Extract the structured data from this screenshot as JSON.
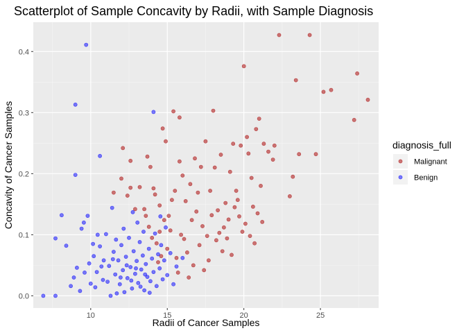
{
  "chart_data": {
    "type": "scatter",
    "title": "Scatterplot of Sample Concavity by Radii, with Sample Diagnosis",
    "xlabel": "Radii of Cancer Samples",
    "ylabel": "Concavity of Cancer Samples",
    "xlim": [
      6.25,
      28.8
    ],
    "ylim": [
      -0.02,
      0.448
    ],
    "x_ticks": [
      10,
      15,
      20,
      25
    ],
    "y_ticks": [
      0.0,
      0.1,
      0.2,
      0.3,
      0.4
    ],
    "x_tick_labels": [
      "10",
      "15",
      "20",
      "25"
    ],
    "y_tick_labels": [
      "0.0",
      "0.1",
      "0.2",
      "0.3",
      "0.4"
    ],
    "grid": true,
    "legend_title": "diagnosis_full",
    "legend_position": "right",
    "series": [
      {
        "name": "Malignant",
        "color": "#b2222299",
        "points": [
          [
            11.5,
            0.169
          ],
          [
            12.0,
            0.192
          ],
          [
            12.1,
            0.242
          ],
          [
            12.4,
            0.164
          ],
          [
            12.6,
            0.221
          ],
          [
            12.6,
            0.177
          ],
          [
            12.9,
            0.142
          ],
          [
            13.2,
            0.178
          ],
          [
            13.5,
            0.142
          ],
          [
            13.7,
            0.228
          ],
          [
            13.9,
            0.211
          ],
          [
            14.1,
            0.176
          ],
          [
            14.2,
            0.166
          ],
          [
            14.5,
            0.148
          ],
          [
            14.5,
            0.105
          ],
          [
            14.7,
            0.274
          ],
          [
            14.9,
            0.253
          ],
          [
            15.1,
            0.131
          ],
          [
            15.3,
            0.157
          ],
          [
            15.5,
            0.172
          ],
          [
            15.8,
            0.292
          ],
          [
            15.8,
            0.22
          ],
          [
            16.0,
            0.197
          ],
          [
            16.2,
            0.155
          ],
          [
            16.5,
            0.183
          ],
          [
            16.8,
            0.225
          ],
          [
            17.0,
            0.169
          ],
          [
            17.2,
            0.211
          ],
          [
            17.5,
            0.253
          ],
          [
            17.8,
            0.172
          ],
          [
            18.0,
            0.303
          ],
          [
            18.1,
            0.21
          ],
          [
            18.3,
            0.14
          ],
          [
            18.5,
            0.231
          ],
          [
            18.8,
            0.152
          ],
          [
            19.1,
            0.203
          ],
          [
            19.3,
            0.249
          ],
          [
            19.5,
            0.172
          ],
          [
            19.6,
            0.157
          ],
          [
            19.8,
            0.246
          ],
          [
            20.0,
            0.376
          ],
          [
            20.2,
            0.26
          ],
          [
            20.3,
            0.233
          ],
          [
            20.5,
            0.193
          ],
          [
            20.6,
            0.146
          ],
          [
            20.8,
            0.273
          ],
          [
            21.0,
            0.29
          ],
          [
            21.1,
            0.18
          ],
          [
            21.3,
            0.249
          ],
          [
            21.6,
            0.236
          ],
          [
            21.9,
            0.223
          ],
          [
            22.0,
            0.246
          ],
          [
            22.3,
            0.427
          ],
          [
            23.0,
            0.163
          ],
          [
            23.2,
            0.195
          ],
          [
            23.4,
            0.353
          ],
          [
            23.6,
            0.232
          ],
          [
            24.3,
            0.427
          ],
          [
            24.7,
            0.232
          ],
          [
            25.2,
            0.334
          ],
          [
            25.7,
            0.337
          ],
          [
            27.2,
            0.288
          ],
          [
            27.4,
            0.364
          ],
          [
            28.1,
            0.321
          ],
          [
            15.4,
            0.302
          ],
          [
            15.2,
            0.107
          ],
          [
            15.9,
            0.1
          ],
          [
            16.1,
            0.093
          ],
          [
            16.6,
            0.124
          ],
          [
            16.9,
            0.138
          ],
          [
            17.1,
            0.083
          ],
          [
            17.3,
            0.114
          ],
          [
            17.6,
            0.098
          ],
          [
            17.9,
            0.132
          ],
          [
            18.2,
            0.091
          ],
          [
            18.4,
            0.103
          ],
          [
            18.7,
            0.112
          ],
          [
            19.0,
            0.125
          ],
          [
            19.4,
            0.145
          ],
          [
            19.7,
            0.13
          ],
          [
            20.1,
            0.118
          ],
          [
            20.4,
            0.098
          ],
          [
            20.7,
            0.086
          ],
          [
            21.2,
            0.121
          ],
          [
            15.6,
            0.062
          ],
          [
            16.3,
            0.071
          ],
          [
            16.7,
            0.05
          ],
          [
            17.4,
            0.042
          ],
          [
            18.6,
            0.073
          ],
          [
            19.2,
            0.067
          ],
          [
            13.8,
            0.113
          ],
          [
            14.0,
            0.095
          ],
          [
            14.3,
            0.086
          ],
          [
            14.6,
            0.065
          ],
          [
            14.8,
            0.124
          ],
          [
            15.0,
            0.077
          ],
          [
            14.4,
            0.055
          ],
          [
            13.6,
            0.131
          ],
          [
            15.7,
            0.038
          ],
          [
            16.4,
            0.03
          ],
          [
            17.7,
            0.058
          ],
          [
            18.9,
            0.094
          ],
          [
            19.9,
            0.105
          ],
          [
            20.9,
            0.135
          ]
        ]
      },
      {
        "name": "Benign",
        "color": "#0000ff80",
        "points": [
          [
            9.7,
            0.411
          ],
          [
            9.0,
            0.313
          ],
          [
            9.0,
            0.198
          ],
          [
            10.6,
            0.229
          ],
          [
            11.4,
            0.144
          ],
          [
            14.1,
            0.301
          ],
          [
            8.1,
            0.132
          ],
          [
            7.7,
            0.094
          ],
          [
            6.9,
            0.0
          ],
          [
            7.7,
            0.0
          ],
          [
            8.4,
            0.082
          ],
          [
            8.7,
            0.016
          ],
          [
            9.1,
            0.046
          ],
          [
            9.4,
            0.11
          ],
          [
            9.6,
            0.038
          ],
          [
            9.8,
            0.131
          ],
          [
            10.0,
            0.02
          ],
          [
            10.2,
            0.065
          ],
          [
            10.4,
            0.039
          ],
          [
            10.6,
            0.081
          ],
          [
            10.8,
            0.026
          ],
          [
            11.0,
            0.101
          ],
          [
            11.2,
            0.049
          ],
          [
            11.3,
            0.0
          ],
          [
            11.5,
            0.072
          ],
          [
            11.6,
            0.035
          ],
          [
            11.8,
            0.058
          ],
          [
            11.9,
            0.019
          ],
          [
            12.0,
            0.083
          ],
          [
            12.1,
            0.042
          ],
          [
            12.2,
            0.006
          ],
          [
            12.3,
            0.064
          ],
          [
            12.4,
            0.029
          ],
          [
            12.5,
            0.095
          ],
          [
            12.6,
            0.047
          ],
          [
            12.7,
            0.012
          ],
          [
            12.8,
            0.073
          ],
          [
            12.9,
            0.036
          ],
          [
            13.0,
            0.057
          ],
          [
            13.1,
            0.021
          ],
          [
            13.2,
            0.088
          ],
          [
            13.3,
            0.043
          ],
          [
            13.4,
            0.066
          ],
          [
            13.5,
            0.009
          ],
          [
            13.6,
            0.052
          ],
          [
            13.7,
            0.031
          ],
          [
            13.8,
            0.077
          ],
          [
            13.9,
            0.024
          ],
          [
            14.0,
            0.061
          ],
          [
            14.1,
            0.039
          ],
          [
            14.2,
            0.102
          ],
          [
            14.3,
            0.016
          ],
          [
            14.4,
            0.068
          ],
          [
            14.5,
            0.045
          ],
          [
            14.6,
            0.083
          ],
          [
            14.7,
            0.027
          ],
          [
            14.8,
            0.058
          ],
          [
            14.9,
            0.112
          ],
          [
            15.0,
            0.034
          ],
          [
            15.2,
            0.07
          ],
          [
            15.4,
            0.019
          ],
          [
            15.6,
            0.048
          ],
          [
            16.0,
            0.062
          ],
          [
            8.9,
            0.03
          ],
          [
            9.3,
            0.008
          ],
          [
            9.9,
            0.053
          ],
          [
            10.3,
            0.014
          ],
          [
            10.7,
            0.048
          ],
          [
            11.1,
            0.023
          ],
          [
            11.7,
            0.004
          ],
          [
            12.35,
            0.05
          ],
          [
            12.65,
            0.025
          ],
          [
            12.95,
            0.045
          ],
          [
            13.25,
            0.015
          ],
          [
            13.55,
            0.035
          ],
          [
            13.85,
            0.005
          ],
          [
            11.45,
            0.06
          ],
          [
            11.95,
            0.03
          ],
          [
            10.85,
            0.058
          ],
          [
            10.15,
            0.085
          ],
          [
            12.15,
            0.11
          ],
          [
            13.05,
            0.12
          ],
          [
            13.45,
            0.105
          ],
          [
            14.55,
            0.13
          ],
          [
            12.75,
            0.137
          ],
          [
            11.65,
            0.092
          ],
          [
            10.45,
            0.1
          ],
          [
            9.55,
            0.12
          ]
        ]
      }
    ]
  }
}
